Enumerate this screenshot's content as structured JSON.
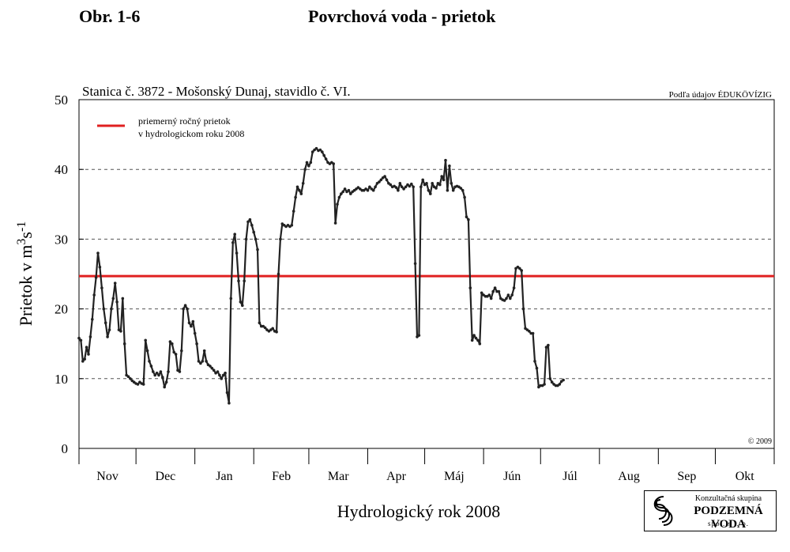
{
  "header": {
    "figure_number": "Obr. 1-6",
    "title": "Povrchová voda - prietok"
  },
  "chart_data": {
    "type": "line",
    "subtitle": "Stanica č. 3872 - Mošonský Dunaj, stavidlo č. VI.",
    "source": "Podľa údajov ÉDUKÖVÍZIG",
    "copyright": "© 2009",
    "ylabel": "Prietok v m",
    "ylabel_sup1": "3",
    "ylabel_mid": "s",
    "ylabel_sup2": "-1",
    "xlabel": "Hydrologický rok 2008",
    "ylim": [
      0,
      50
    ],
    "yticks": [
      0,
      10,
      20,
      30,
      40,
      50
    ],
    "grid": "horizontal dashed",
    "legend_position": "top-left",
    "months": [
      "Nov",
      "Dec",
      "Jan",
      "Feb",
      "Mar",
      "Apr",
      "Máj",
      "Jún",
      "Júl",
      "Aug",
      "Sep",
      "Okt"
    ],
    "month_lengths": [
      30,
      31,
      31,
      29,
      31,
      30,
      31,
      30,
      31,
      31,
      30,
      31
    ],
    "reference_line": {
      "name": "priemerný ročný prietok v hydrologickom roku 2008",
      "label_line1": "priemerný ročný prietok",
      "label_line2": "v hydrologickom roku 2008",
      "value": 24.7,
      "color": "#e02020"
    },
    "series": [
      {
        "color": "#222222",
        "points": [
          [
            0,
            15.8
          ],
          [
            1,
            15.5
          ],
          [
            2,
            12.5
          ],
          [
            3,
            12.8
          ],
          [
            4,
            14.5
          ],
          [
            5,
            13.5
          ],
          [
            6,
            16
          ],
          [
            7,
            18.5
          ],
          [
            8,
            22
          ],
          [
            9,
            24.5
          ],
          [
            10,
            28
          ],
          [
            11,
            26
          ],
          [
            12,
            23
          ],
          [
            13,
            20
          ],
          [
            14,
            18
          ],
          [
            15,
            16
          ],
          [
            16,
            17
          ],
          [
            17,
            20
          ],
          [
            18,
            21.5
          ],
          [
            19,
            23.7
          ],
          [
            20,
            21
          ],
          [
            21,
            17
          ],
          [
            22,
            16.8
          ],
          [
            23,
            21.5
          ],
          [
            24,
            15
          ],
          [
            25,
            10.5
          ],
          [
            26,
            10.3
          ],
          [
            27,
            10
          ],
          [
            28,
            9.7
          ],
          [
            29,
            9.5
          ],
          [
            30,
            9.3
          ],
          [
            31,
            9.2
          ],
          [
            32,
            9.5
          ],
          [
            33,
            9.3
          ],
          [
            34,
            9.2
          ],
          [
            35,
            15.5
          ],
          [
            36,
            14
          ],
          [
            37,
            12.5
          ],
          [
            38,
            11.8
          ],
          [
            39,
            11
          ],
          [
            40,
            10.5
          ],
          [
            41,
            10.8
          ],
          [
            42,
            10.5
          ],
          [
            43,
            11
          ],
          [
            44,
            10.2
          ],
          [
            45,
            8.8
          ],
          [
            46,
            9.5
          ],
          [
            47,
            11
          ],
          [
            48,
            15.3
          ],
          [
            49,
            15
          ],
          [
            50,
            13.8
          ],
          [
            51,
            13.5
          ],
          [
            52,
            11.2
          ],
          [
            53,
            11
          ],
          [
            54,
            14
          ],
          [
            55,
            20
          ],
          [
            56,
            20.5
          ],
          [
            57,
            20
          ],
          [
            58,
            18
          ],
          [
            59,
            17.5
          ],
          [
            60,
            18.2
          ],
          [
            61,
            16.5
          ],
          [
            62,
            15
          ],
          [
            63,
            12.5
          ],
          [
            64,
            12.2
          ],
          [
            65,
            12.5
          ],
          [
            66,
            14
          ],
          [
            67,
            12.5
          ],
          [
            68,
            12
          ],
          [
            69,
            11.8
          ],
          [
            70,
            11.5
          ],
          [
            71,
            11.2
          ],
          [
            72,
            10.8
          ],
          [
            73,
            11
          ],
          [
            74,
            10.5
          ],
          [
            75,
            10
          ],
          [
            76,
            10.5
          ],
          [
            77,
            10.8
          ],
          [
            78,
            8
          ],
          [
            79,
            6.5
          ],
          [
            80,
            21.5
          ],
          [
            81,
            29.5
          ],
          [
            82,
            30.7
          ],
          [
            83,
            28
          ],
          [
            84,
            24
          ],
          [
            85,
            21
          ],
          [
            86,
            20.5
          ],
          [
            87,
            24
          ],
          [
            88,
            30
          ],
          [
            89,
            32.5
          ],
          [
            90,
            32.8
          ],
          [
            91,
            32
          ],
          [
            92,
            31
          ],
          [
            93,
            30
          ],
          [
            94,
            28.5
          ],
          [
            95,
            18
          ],
          [
            96,
            17.5
          ],
          [
            97,
            17.5
          ],
          [
            98,
            17.3
          ],
          [
            99,
            17
          ],
          [
            100,
            16.8
          ],
          [
            101,
            17
          ],
          [
            102,
            17.2
          ],
          [
            103,
            16.8
          ],
          [
            104,
            16.7
          ],
          [
            105,
            25
          ],
          [
            106,
            30
          ],
          [
            107,
            32.2
          ],
          [
            108,
            32
          ],
          [
            109,
            31.8
          ],
          [
            110,
            32
          ],
          [
            111,
            31.8
          ],
          [
            112,
            32
          ],
          [
            113,
            34
          ],
          [
            114,
            36
          ],
          [
            115,
            37.5
          ],
          [
            116,
            37
          ],
          [
            117,
            36.5
          ],
          [
            118,
            38
          ],
          [
            119,
            40
          ],
          [
            120,
            41
          ],
          [
            121,
            40.5
          ],
          [
            122,
            41
          ],
          [
            123,
            42.5
          ],
          [
            124,
            42.8
          ],
          [
            125,
            43
          ],
          [
            126,
            42.7
          ],
          [
            127,
            42.8
          ],
          [
            128,
            42.5
          ],
          [
            129,
            42
          ],
          [
            130,
            41.5
          ],
          [
            131,
            41
          ],
          [
            132,
            40.8
          ],
          [
            133,
            41
          ],
          [
            134,
            40.8
          ],
          [
            135,
            32.3
          ],
          [
            136,
            35
          ],
          [
            137,
            36
          ],
          [
            138,
            36.5
          ],
          [
            139,
            36.8
          ],
          [
            140,
            37.2
          ],
          [
            141,
            36.8
          ],
          [
            142,
            37
          ],
          [
            143,
            36.5
          ],
          [
            144,
            36.8
          ],
          [
            145,
            37
          ],
          [
            146,
            37.2
          ],
          [
            147,
            37.4
          ],
          [
            148,
            37.2
          ],
          [
            149,
            37
          ],
          [
            150,
            37
          ],
          [
            151,
            37.2
          ],
          [
            152,
            37
          ],
          [
            153,
            37.5
          ],
          [
            154,
            37.2
          ],
          [
            155,
            37
          ],
          [
            156,
            37.5
          ],
          [
            157,
            38
          ],
          [
            158,
            38.2
          ],
          [
            159,
            38.5
          ],
          [
            160,
            38.8
          ],
          [
            161,
            39
          ],
          [
            162,
            38.5
          ],
          [
            163,
            38
          ],
          [
            164,
            37.8
          ],
          [
            165,
            37.5
          ],
          [
            166,
            37.6
          ],
          [
            167,
            37.4
          ],
          [
            168,
            37
          ],
          [
            169,
            38
          ],
          [
            170,
            37.5
          ],
          [
            171,
            37.2
          ],
          [
            172,
            37.5
          ],
          [
            173,
            37.8
          ],
          [
            174,
            37.6
          ],
          [
            175,
            37.9
          ],
          [
            176,
            37.5
          ],
          [
            177,
            26.5
          ],
          [
            178,
            16
          ],
          [
            179,
            16.2
          ],
          [
            180,
            37.5
          ],
          [
            181,
            38.5
          ],
          [
            182,
            37.8
          ],
          [
            183,
            38
          ],
          [
            184,
            37
          ],
          [
            185,
            36.5
          ],
          [
            186,
            38
          ],
          [
            187,
            37.5
          ],
          [
            188,
            37.3
          ],
          [
            189,
            38
          ],
          [
            190,
            37.8
          ],
          [
            191,
            39
          ],
          [
            192,
            38.5
          ],
          [
            193,
            41.3
          ],
          [
            194,
            37
          ],
          [
            195,
            40.5
          ],
          [
            196,
            38
          ],
          [
            197,
            37
          ],
          [
            198,
            37.5
          ],
          [
            199,
            37.6
          ],
          [
            200,
            37.5
          ],
          [
            201,
            37.3
          ],
          [
            202,
            37
          ],
          [
            203,
            36
          ],
          [
            204,
            33.2
          ],
          [
            205,
            32.8
          ],
          [
            206,
            23
          ],
          [
            207,
            15.5
          ],
          [
            208,
            16.2
          ],
          [
            209,
            15.8
          ],
          [
            210,
            15.5
          ],
          [
            211,
            15
          ],
          [
            212,
            22.3
          ],
          [
            213,
            22
          ],
          [
            214,
            21.8
          ],
          [
            215,
            21.8
          ],
          [
            216,
            22
          ],
          [
            217,
            21.5
          ],
          [
            218,
            22.5
          ],
          [
            219,
            23
          ],
          [
            220,
            22.5
          ],
          [
            221,
            22.5
          ],
          [
            222,
            21.5
          ],
          [
            223,
            21.3
          ],
          [
            224,
            21.2
          ],
          [
            225,
            21.5
          ],
          [
            226,
            22
          ],
          [
            227,
            21.5
          ],
          [
            228,
            22
          ],
          [
            229,
            23
          ],
          [
            230,
            25.8
          ],
          [
            231,
            26
          ],
          [
            232,
            25.8
          ],
          [
            233,
            25.5
          ],
          [
            234,
            20
          ],
          [
            235,
            17.2
          ],
          [
            236,
            17
          ],
          [
            237,
            16.8
          ],
          [
            238,
            16.5
          ],
          [
            239,
            16.5
          ],
          [
            240,
            12.5
          ],
          [
            241,
            11.5
          ],
          [
            242,
            8.8
          ],
          [
            243,
            9
          ],
          [
            244,
            9
          ],
          [
            245,
            9.2
          ],
          [
            246,
            14.5
          ],
          [
            247,
            14.8
          ],
          [
            248,
            10
          ],
          [
            249,
            9.5
          ],
          [
            250,
            9.2
          ],
          [
            251,
            9
          ],
          [
            252,
            9
          ],
          [
            253,
            9.2
          ],
          [
            254,
            9.6
          ],
          [
            255,
            9.8
          ]
        ]
      }
    ]
  },
  "footer": {
    "logo_line1": "Konzultačná skupina",
    "logo_line2": "PODZEMNÁ VODA",
    "logo_line3": "spol. s r. o."
  }
}
